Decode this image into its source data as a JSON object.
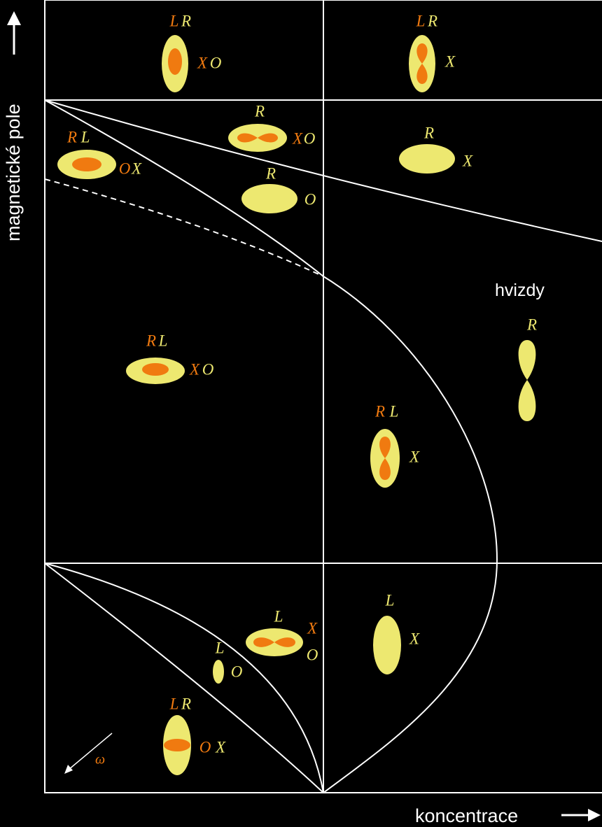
{
  "y_label": "magnetické pole",
  "x_label": "koncentrace",
  "annotation": "hvizdy",
  "omega": "ω",
  "regions": [
    {
      "labels": [
        {
          "text": "L",
          "color": "#f07a10"
        },
        {
          "text": "R",
          "color": "#ede870"
        },
        {
          "text": "X",
          "color": "#f07a10"
        },
        {
          "text": "O",
          "color": "#ede870"
        }
      ]
    },
    {
      "labels": [
        {
          "text": "L",
          "color": "#f07a10"
        },
        {
          "text": "R",
          "color": "#ede870"
        },
        {
          "text": "X",
          "color": "#ede870"
        }
      ]
    },
    {
      "labels": [
        {
          "text": "R",
          "color": "#f07a10"
        },
        {
          "text": "L",
          "color": "#ede870"
        },
        {
          "text": "O",
          "color": "#f07a10"
        },
        {
          "text": "X",
          "color": "#ede870"
        }
      ]
    },
    {
      "labels": [
        {
          "text": "R",
          "color": "#ede870"
        },
        {
          "text": "X",
          "color": "#f07a10"
        },
        {
          "text": "O",
          "color": "#ede870"
        }
      ]
    },
    {
      "labels": [
        {
          "text": "R",
          "color": "#ede870"
        },
        {
          "text": "O",
          "color": "#ede870"
        }
      ]
    },
    {
      "labels": [
        {
          "text": "R",
          "color": "#ede870"
        },
        {
          "text": "X",
          "color": "#ede870"
        }
      ]
    },
    {
      "labels": [
        {
          "text": "R",
          "color": "#f07a10"
        },
        {
          "text": "L",
          "color": "#ede870"
        },
        {
          "text": "X",
          "color": "#f07a10"
        },
        {
          "text": "O",
          "color": "#ede870"
        }
      ]
    },
    {
      "labels": [
        {
          "text": "R",
          "color": "#f07a10"
        },
        {
          "text": "L",
          "color": "#ede870"
        },
        {
          "text": "X",
          "color": "#ede870"
        }
      ]
    },
    {
      "labels": [
        {
          "text": "R",
          "color": "#ede870"
        }
      ]
    },
    {
      "labels": [
        {
          "text": "L",
          "color": "#ede870"
        },
        {
          "text": "X",
          "color": "#ede870"
        }
      ]
    },
    {
      "labels": [
        {
          "text": "L",
          "color": "#ede870"
        },
        {
          "text": "X",
          "color": "#f07a10"
        },
        {
          "text": "O",
          "color": "#ede870"
        }
      ]
    },
    {
      "labels": [
        {
          "text": "L",
          "color": "#ede870"
        },
        {
          "text": "O",
          "color": "#ede870"
        }
      ]
    },
    {
      "labels": [
        {
          "text": "L",
          "color": "#f07a10"
        },
        {
          "text": "R",
          "color": "#ede870"
        },
        {
          "text": "O",
          "color": "#f07a10"
        },
        {
          "text": "X",
          "color": "#ede870"
        }
      ]
    }
  ]
}
